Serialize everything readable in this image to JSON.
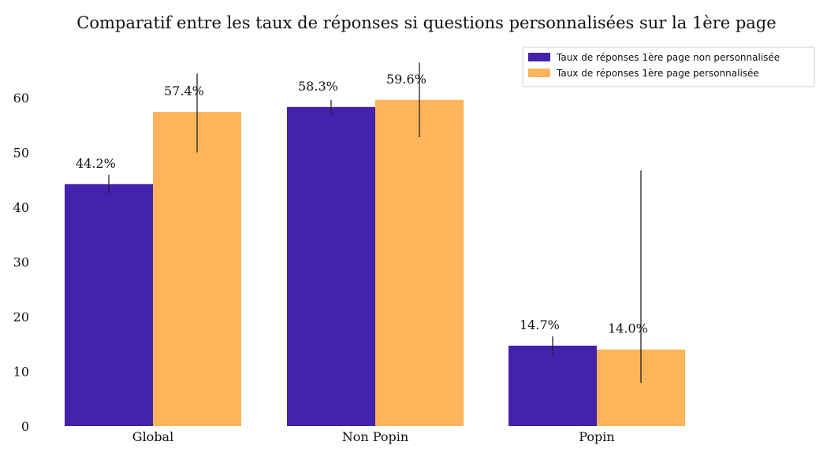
{
  "chart_data": {
    "type": "bar",
    "title": "Comparatif entre les taux de réponses si questions personnalisées sur la 1ère page",
    "xlabel": "",
    "ylabel": "",
    "categories": [
      "Global",
      "Non Popin",
      "Popin"
    ],
    "series": [
      {
        "name": "Taux de réponses 1ère page non personnalisée",
        "color": "#4322ad",
        "values": [
          44.2,
          58.3,
          14.7
        ],
        "labels": [
          "44.2%",
          "58.3%",
          "14.7%"
        ],
        "error": [
          [
            42.5,
            45.9
          ],
          [
            57.0,
            59.6
          ],
          [
            13.0,
            16.4
          ]
        ]
      },
      {
        "name": "Taux de réponses 1ère page personnalisée",
        "color": "#fdb45b",
        "values": [
          57.4,
          59.6,
          14.0
        ],
        "labels": [
          "57.4%",
          "59.6%",
          "14.0%"
        ],
        "error": [
          [
            50.0,
            64.4
          ],
          [
            52.8,
            66.4
          ],
          [
            7.9,
            46.7
          ]
        ]
      }
    ],
    "yticks": [
      0,
      10,
      20,
      30,
      40,
      50,
      60
    ],
    "ylim": [
      0,
      67
    ],
    "grid": false,
    "legend": "top-right"
  }
}
